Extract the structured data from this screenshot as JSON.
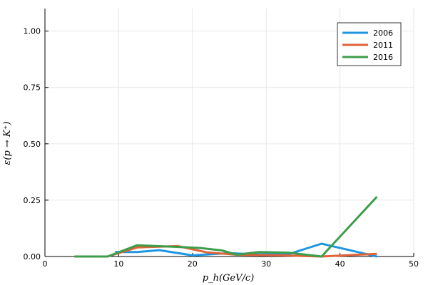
{
  "chart_data": {
    "type": "line",
    "title": "",
    "xlabel": "p_h(GeV/c)",
    "ylabel": "ε(p → K⁺)",
    "xlim": [
      0,
      50
    ],
    "ylim": [
      0,
      1.1
    ],
    "xticks": [
      0,
      10,
      20,
      30,
      40,
      50
    ],
    "xtick_labels": [
      "0",
      "10",
      "20",
      "30",
      "40",
      "50"
    ],
    "yticks": [
      0,
      0.25,
      0.5,
      0.75,
      1.0
    ],
    "ytick_labels": [
      "0.00",
      "0.25",
      "0.50",
      "0.75",
      "1.00"
    ],
    "grid": true,
    "legend_position": "top-right",
    "series": [
      {
        "name": "2006",
        "color": "#1f96e0",
        "x": [
          9.5,
          12.5,
          15.5,
          20,
          25,
          28,
          33,
          37.5,
          45
        ],
        "y": [
          0.02,
          0.02,
          0.028,
          0.005,
          0.015,
          0.01,
          0.01,
          0.057,
          0.0
        ]
      },
      {
        "name": "2011",
        "color": "#e0633a",
        "x": [
          4,
          8.5,
          12.5,
          18,
          22,
          26,
          32,
          37.5,
          45
        ],
        "y": [
          0.0,
          0.0,
          0.04,
          0.046,
          0.018,
          0.008,
          0.005,
          0.0,
          0.012
        ]
      },
      {
        "name": "2016",
        "color": "#3c9e4a",
        "x": [
          4,
          8.5,
          12.5,
          17,
          21,
          24,
          26,
          29,
          33,
          37.5,
          45
        ],
        "y": [
          0.0,
          0.0,
          0.05,
          0.044,
          0.038,
          0.027,
          0.008,
          0.02,
          0.017,
          0.0,
          0.265
        ]
      }
    ]
  }
}
